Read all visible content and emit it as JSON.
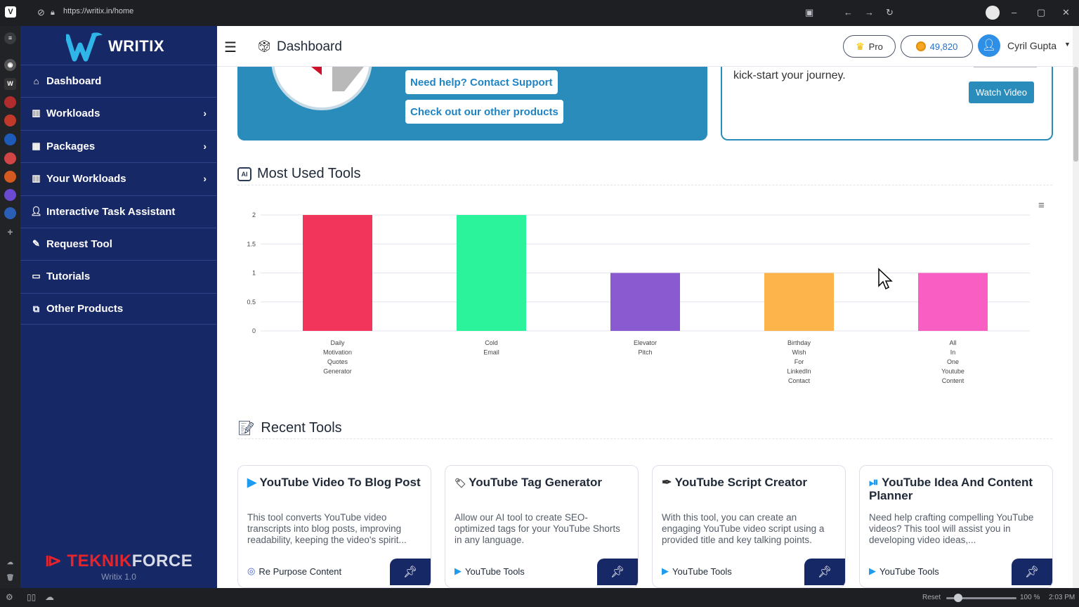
{
  "browser": {
    "url": "https://writix.in/home",
    "status_reset": "Reset",
    "status_zoom": "100 %",
    "status_time": "2:03 PM"
  },
  "sidebar": {
    "logo_text": "WRITIX",
    "items": [
      {
        "label": "Dashboard",
        "icon": "home-icon",
        "has_chevron": false
      },
      {
        "label": "Workloads",
        "icon": "chart-icon",
        "has_chevron": true
      },
      {
        "label": "Packages",
        "icon": "grid-icon",
        "has_chevron": true
      },
      {
        "label": "Your Workloads",
        "icon": "chart-icon",
        "has_chevron": true
      },
      {
        "label": "Interactive Task Assistant",
        "icon": "user-icon",
        "has_chevron": false
      },
      {
        "label": "Request Tool",
        "icon": "wand-icon",
        "has_chevron": false
      },
      {
        "label": "Tutorials",
        "icon": "monitor-icon",
        "has_chevron": false
      },
      {
        "label": "Other Products",
        "icon": "external-icon",
        "has_chevron": false
      }
    ],
    "footer_brand_a": "TEKNIK",
    "footer_brand_b": "FORCE",
    "footer_version": "Writix 1.0"
  },
  "header": {
    "title": "Dashboard",
    "pro_label": "Pro",
    "credits": "49,820",
    "user_name": "Cyril Gupta"
  },
  "hero": {
    "support_label": "Need help? Contact Support",
    "products_label": "Check out our other products"
  },
  "video_card": {
    "text": "kick-start your journey.",
    "button_label": "Watch Video"
  },
  "most_used": {
    "title": "Most Used Tools"
  },
  "chart_data": {
    "type": "bar",
    "categories": [
      [
        "Daily",
        "Motivation",
        "Quotes",
        "Generator"
      ],
      [
        "Cold",
        "Email"
      ],
      [
        "Elevator",
        "Pitch"
      ],
      [
        "Birthday",
        "Wish",
        "For",
        "LinkedIn",
        "Contact"
      ],
      [
        "All",
        "In",
        "One",
        "Youtube",
        "Content"
      ]
    ],
    "values": [
      2,
      2,
      1,
      1,
      1
    ],
    "colors": [
      "#f2365b",
      "#2bf39b",
      "#8a5ad1",
      "#fdb44a",
      "#f95fc3"
    ],
    "yticks": [
      "0",
      "0.5",
      "1",
      "1.5",
      "2"
    ],
    "ylim": [
      0,
      2
    ],
    "grid": true
  },
  "recent": {
    "title": "Recent Tools",
    "cards": [
      {
        "title": "YouTube Video To Blog Post",
        "desc": "This tool converts YouTube video transcripts into blog posts, improving readability, keeping the video's spirit...",
        "category": "Re Purpose Content",
        "icon": "play-square-icon",
        "cat_icon": "recycle-icon"
      },
      {
        "title": "YouTube Tag Generator",
        "desc": "Allow our AI tool to create SEO-optimized tags for your YouTube Shorts in any language.",
        "category": "YouTube Tools",
        "icon": "tag-icon",
        "cat_icon": "play-square-icon"
      },
      {
        "title": "YouTube Script Creator",
        "desc": "With this tool, you can create an engaging YouTube video script using a provided title and key talking points.",
        "category": "YouTube Tools",
        "icon": "pen-icon",
        "cat_icon": "play-square-icon"
      },
      {
        "title": "YouTube Idea And Content Planner",
        "desc": "Need help crafting compelling YouTube videos? This tool will assist you in developing video ideas,...",
        "category": "YouTube Tools",
        "icon": "film-icon",
        "cat_icon": "play-square-icon"
      }
    ]
  }
}
